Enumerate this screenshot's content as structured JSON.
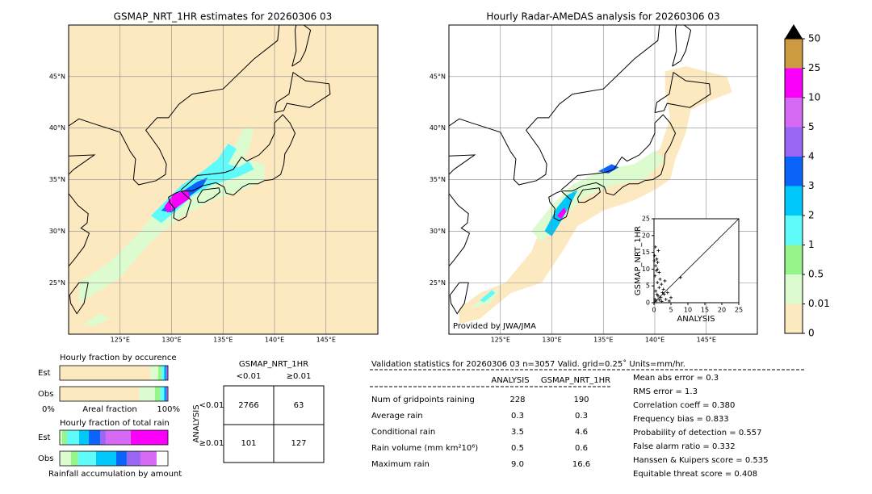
{
  "left_map": {
    "title": "GSMAP_NRT_1HR estimates for 20260306 03",
    "lat_labels": [
      "45°N",
      "40°N",
      "35°N",
      "30°N",
      "25°N"
    ],
    "lon_labels": [
      "125°E",
      "130°E",
      "135°E",
      "140°E",
      "145°E"
    ]
  },
  "right_map": {
    "title": "Hourly Radar-AMeDAS analysis for 20260306 03",
    "lat_labels": [
      "45°N",
      "40°N",
      "35°N",
      "30°N",
      "25°N"
    ],
    "lon_labels": [
      "125°E",
      "130°E",
      "135°E",
      "140°E",
      "145°E"
    ],
    "credit": "Provided by JWA/JMA"
  },
  "chart_data": {
    "type": "scatter",
    "xlabel": "ANALYSIS",
    "ylabel": "GSMAP_NRT_1HR",
    "xlim": [
      0,
      25
    ],
    "ylim": [
      0,
      25
    ],
    "xticks": [
      0,
      5,
      10,
      15,
      20,
      25
    ],
    "yticks": [
      0,
      5,
      10,
      15,
      20,
      25
    ],
    "color": "#000000",
    "x": [
      0.1,
      0.2,
      0.3,
      0.5,
      0.5,
      0.8,
      1.0,
      1.0,
      1.2,
      1.5,
      1.5,
      1.8,
      2.0,
      2.2,
      2.5,
      3.0,
      3.2,
      3.5,
      4.0,
      4.5,
      0.3,
      0.6,
      0.9,
      1.1,
      1.3,
      0.4,
      2.8,
      5.0,
      7.8,
      1.6,
      0.7,
      2.3
    ],
    "y": [
      12.5,
      14.0,
      8.0,
      11.0,
      3.5,
      13.0,
      6.0,
      10.0,
      2.0,
      9.0,
      4.5,
      7.0,
      1.5,
      5.5,
      3.0,
      2.5,
      6.5,
      1.0,
      3.0,
      0.5,
      1.0,
      0.5,
      2.5,
      12.0,
      15.5,
      16.6,
      4.0,
      1.5,
      7.5,
      0.8,
      9.5,
      0.4
    ]
  },
  "colorbar": {
    "levels": [
      0,
      0.01,
      0.5,
      1,
      2,
      3,
      4,
      5,
      10,
      25,
      50
    ],
    "colors": [
      "#fde9c0",
      "#dcfcd0",
      "#96f58a",
      "#5ffbfb",
      "#00c8fa",
      "#0a64fa",
      "#9a67f5",
      "#d66af5",
      "#fa00fa",
      "#cc9a40"
    ]
  },
  "occurrence": {
    "title": "Hourly fraction by occurence",
    "rows": [
      "Est",
      "Obs"
    ],
    "fractions": [
      [
        0.836,
        0.075,
        0.03,
        0.022,
        0.015,
        0.008,
        0.006,
        0.005,
        0.003,
        0
      ],
      [
        0.731,
        0.149,
        0.052,
        0.03,
        0.015,
        0.01,
        0.007,
        0.004,
        0.002,
        0
      ]
    ],
    "left_label": "0%",
    "center_label": "Areal fraction",
    "right_label": "100%"
  },
  "total_rain": {
    "title": "Hourly fraction of total rain",
    "rows": [
      "Est",
      "Obs"
    ],
    "fractions": [
      [
        0,
        0.022,
        0.045,
        0.112,
        0.09,
        0.104,
        0.052,
        0.231,
        0.343,
        0
      ],
      [
        0,
        0.104,
        0.067,
        0.164,
        0.187,
        0.097,
        0.127,
        0.149,
        0,
        0
      ]
    ],
    "footer": "Rainfall accumulation by amount"
  },
  "contingency": {
    "title": "GSMAP_NRT_1HR",
    "col_labels": [
      "<0.01",
      "≥0.01"
    ],
    "row_title": "ANALYSIS",
    "row_labels": [
      "<0.01",
      "≥0.01"
    ],
    "cells": [
      [
        "2766",
        "63"
      ],
      [
        "101",
        "127"
      ]
    ]
  },
  "stats": {
    "header": "Validation statistics for 20260306 03  n=3057 Valid. grid=0.25˚ Units=mm/hr.",
    "columns": [
      "ANALYSIS",
      "GSMAP_NRT_1HR"
    ],
    "rows": [
      [
        "Num of gridpoints raining",
        "228",
        "190"
      ],
      [
        "Average rain",
        "0.3",
        "0.3"
      ],
      [
        "Conditional rain",
        "3.5",
        "4.6"
      ],
      [
        "Rain volume (mm km²10⁶)",
        "0.5",
        "0.6"
      ],
      [
        "Maximum rain",
        "9.0",
        "16.6"
      ]
    ],
    "scores": [
      "Mean abs error =    0.3",
      "RMS error =    1.3",
      "Correlation coeff =  0.380",
      "Frequency bias =  0.833",
      "Probability of detection =  0.557",
      "False alarm ratio =  0.332",
      "Hanssen & Kuipers score =  0.535",
      "Equitable threat score =  0.408"
    ]
  }
}
